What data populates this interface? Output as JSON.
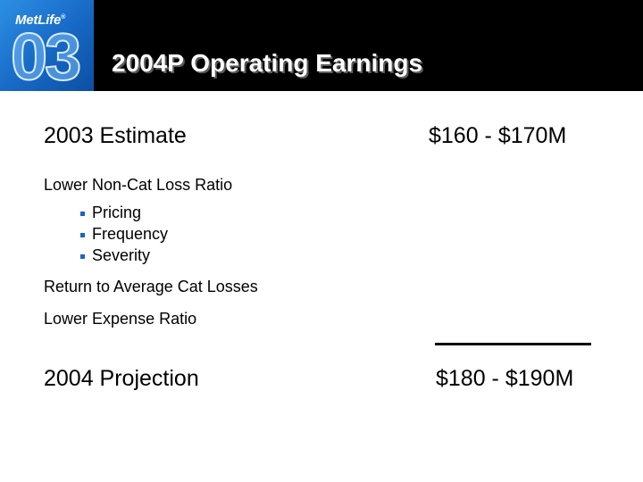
{
  "header": {
    "logo_text": "MetLife",
    "logo_number": "03",
    "title": "2004P Operating Earnings"
  },
  "estimate": {
    "label": "2003 Estimate",
    "value": "$160 - $170M"
  },
  "factors": {
    "loss_ratio": "Lower Non-Cat Loss Ratio",
    "sub_items": [
      "Pricing",
      "Frequency",
      "Severity"
    ],
    "cat_losses": "Return to Average Cat Losses",
    "expense_ratio": "Lower Expense Ratio"
  },
  "projection": {
    "label": "2004 Projection",
    "value": "$180 - $190M"
  },
  "colors": {
    "header_bg": "#000000",
    "logo_blue": "#1668c4",
    "bullet": "#1a63c2"
  }
}
